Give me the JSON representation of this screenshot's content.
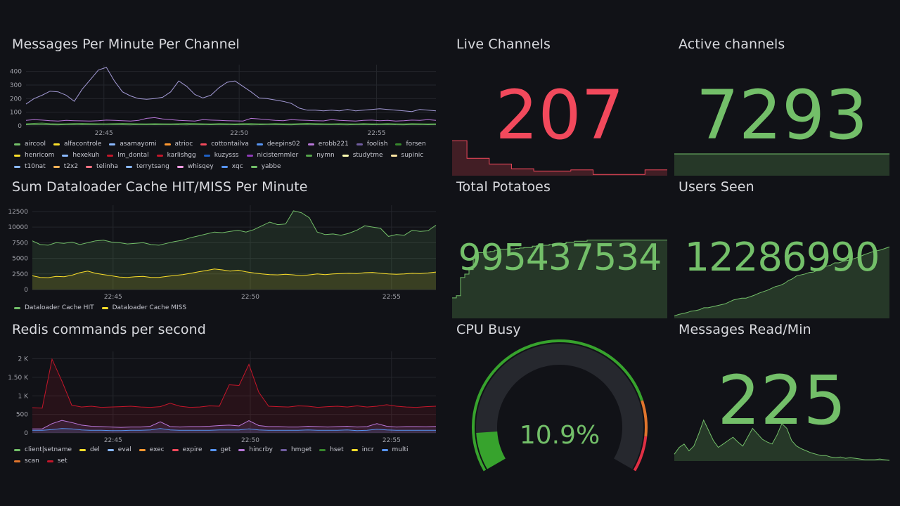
{
  "panels": {
    "messages": {
      "title": "Messages Per Minute Per Channel",
      "legend": [
        {
          "name": "aircool",
          "color": "#73bf69"
        },
        {
          "name": "alfacontrole",
          "color": "#fade2a"
        },
        {
          "name": "asamayomi",
          "color": "#8ab8ff"
        },
        {
          "name": "atrioc",
          "color": "#ff9830"
        },
        {
          "name": "cottontailva",
          "color": "#f2495c"
        },
        {
          "name": "deepins02",
          "color": "#5794f2"
        },
        {
          "name": "erobb221",
          "color": "#b877d9"
        },
        {
          "name": "foolish",
          "color": "#705da0"
        },
        {
          "name": "forsen",
          "color": "#37872d"
        },
        {
          "name": "henricom",
          "color": "#fade2a"
        },
        {
          "name": "hexekuh",
          "color": "#8ab8ff"
        },
        {
          "name": "lm_dontal",
          "color": "#c4162a"
        },
        {
          "name": "karlishgg",
          "color": "#c4162a"
        },
        {
          "name": "kuzysss",
          "color": "#1f60c4"
        },
        {
          "name": "nicistemmler",
          "color": "#8f3bb8"
        },
        {
          "name": "nymn",
          "color": "#56a64b"
        },
        {
          "name": "studytme",
          "color": "#ffffb3"
        },
        {
          "name": "supinic",
          "color": "#ffe6a3"
        },
        {
          "name": "t10nat",
          "color": "#8ab8ff"
        },
        {
          "name": "t2x2",
          "color": "#ffb357"
        },
        {
          "name": "telinha",
          "color": "#ff7383"
        },
        {
          "name": "terrytsang",
          "color": "#8ab8ff"
        },
        {
          "name": "whisqey",
          "color": "#ff9de5"
        },
        {
          "name": "xqc",
          "color": "#5794f2"
        },
        {
          "name": "yabbe",
          "color": "#73bf69"
        }
      ]
    },
    "dataloader": {
      "title": "Sum Dataloader Cache HIT/MISS Per Minute",
      "legend": [
        {
          "name": "Dataloader Cache HIT",
          "color": "#73bf69"
        },
        {
          "name": "Dataloader Cache MISS",
          "color": "#fade2a"
        }
      ]
    },
    "redis": {
      "title": "Redis commands per second",
      "legend": [
        {
          "name": "client|setname",
          "color": "#73bf69"
        },
        {
          "name": "del",
          "color": "#fade2a"
        },
        {
          "name": "eval",
          "color": "#8ab8ff"
        },
        {
          "name": "exec",
          "color": "#ff9830"
        },
        {
          "name": "expire",
          "color": "#f2495c"
        },
        {
          "name": "get",
          "color": "#5794f2"
        },
        {
          "name": "hincrby",
          "color": "#b877d9"
        },
        {
          "name": "hmget",
          "color": "#705da0"
        },
        {
          "name": "hset",
          "color": "#37872d"
        },
        {
          "name": "incr",
          "color": "#fade2a"
        },
        {
          "name": "multi",
          "color": "#5794f2"
        },
        {
          "name": "scan",
          "color": "#e0752d"
        },
        {
          "name": "set",
          "color": "#c4162a"
        }
      ]
    },
    "live_channels": {
      "title": "Live Channels",
      "value": "207",
      "color": "#f2495c"
    },
    "active_channels": {
      "title": "Active channels",
      "value": "7293",
      "color": "#73bf69"
    },
    "total_potatoes": {
      "title": "Total Potatoes",
      "value": "995437534",
      "color": "#73bf69"
    },
    "users_seen": {
      "title": "Users Seen",
      "value": "12286990",
      "color": "#73bf69"
    },
    "cpu_busy": {
      "title": "CPU Busy",
      "value_text": "10.9%",
      "value": 10.9,
      "color": "#73bf69"
    },
    "messages_read": {
      "title": "Messages Read/Min",
      "value": "225",
      "color": "#73bf69"
    }
  },
  "chart_data": [
    {
      "type": "line",
      "title": "Messages Per Minute Per Channel",
      "x_ticks": [
        "22:45",
        "22:50",
        "22:55"
      ],
      "y_ticks": [
        "400",
        "300",
        "200",
        "100",
        "0"
      ],
      "ylim": [
        0,
        450
      ],
      "series": [
        {
          "name": "foolish",
          "color": "#a39ad6",
          "values": [
            160,
            200,
            225,
            255,
            250,
            225,
            180,
            270,
            340,
            410,
            430,
            330,
            250,
            220,
            200,
            195,
            200,
            210,
            250,
            330,
            290,
            230,
            205,
            225,
            280,
            320,
            330,
            290,
            250,
            205,
            200,
            190,
            180,
            165,
            130,
            115,
            115,
            110,
            115,
            110,
            120,
            110,
            115,
            120,
            125,
            120,
            115,
            110,
            105,
            120,
            115,
            110
          ]
        },
        {
          "name": "erobb221",
          "color": "#b877d9",
          "values": [
            40,
            45,
            42,
            38,
            35,
            40,
            38,
            36,
            35,
            38,
            42,
            40,
            38,
            35,
            40,
            55,
            60,
            50,
            45,
            40,
            38,
            35,
            45,
            42,
            40,
            38,
            36,
            35,
            55,
            50,
            45,
            40,
            38,
            45,
            42,
            40,
            38,
            36,
            45,
            40,
            38,
            35,
            40,
            42,
            38,
            40,
            35,
            38,
            42,
            40,
            45,
            40
          ]
        },
        {
          "name": "nymn",
          "color": "#56a64b",
          "values": [
            15,
            18,
            20,
            16,
            14,
            15,
            17,
            18,
            16,
            15,
            14,
            16,
            18,
            17,
            15,
            14,
            16,
            15,
            14,
            16,
            18,
            17,
            15,
            14,
            16,
            15,
            14,
            16,
            17,
            15,
            14,
            16,
            15,
            14,
            16,
            18,
            17,
            15,
            14,
            16,
            15,
            14,
            16,
            15,
            14,
            16,
            15,
            14,
            16,
            15,
            14,
            15
          ]
        },
        {
          "name": "aircool",
          "color": "#73bf69",
          "values": [
            8,
            10,
            9,
            8,
            7,
            9,
            10,
            8,
            9,
            10,
            11,
            9,
            8,
            7,
            9,
            10,
            8,
            9,
            10,
            8,
            7,
            9,
            10,
            8,
            9,
            10,
            8,
            9,
            7,
            8,
            10,
            9,
            8,
            7,
            9,
            10,
            8,
            9,
            10,
            8,
            7,
            9,
            10,
            8,
            9,
            10,
            8,
            7,
            9,
            10,
            8,
            9
          ]
        }
      ]
    },
    {
      "type": "area",
      "title": "Sum Dataloader Cache HIT/MISS Per Minute",
      "x_ticks": [
        "22:45",
        "22:50",
        "22:55"
      ],
      "y_ticks": [
        "12500",
        "10000",
        "7500",
        "5000",
        "2500",
        "0"
      ],
      "ylim": [
        0,
        13500
      ],
      "series": [
        {
          "name": "Dataloader Cache HIT",
          "color": "#73bf69",
          "values": [
            7800,
            7200,
            7100,
            7500,
            7400,
            7600,
            7200,
            7500,
            7800,
            7900,
            7600,
            7500,
            7300,
            7400,
            7500,
            7200,
            7100,
            7400,
            7700,
            7900,
            8300,
            8600,
            8900,
            9200,
            9100,
            9300,
            9500,
            9200,
            9600,
            10200,
            10800,
            10400,
            10500,
            12600,
            12300,
            11500,
            9200,
            8800,
            8900,
            8700,
            9000,
            9500,
            10200,
            10000,
            9800,
            8500,
            8800,
            8700,
            9500,
            9300,
            9400,
            10300
          ]
        },
        {
          "name": "Dataloader Cache MISS",
          "color": "#fade2a",
          "values": [
            2200,
            1950,
            1900,
            2100,
            2050,
            2300,
            2700,
            2950,
            2600,
            2400,
            2200,
            2000,
            1950,
            2050,
            2100,
            1950,
            1950,
            2100,
            2250,
            2400,
            2600,
            2850,
            3050,
            3300,
            3150,
            2950,
            3100,
            2850,
            2650,
            2500,
            2400,
            2350,
            2450,
            2350,
            2200,
            2350,
            2500,
            2400,
            2500,
            2550,
            2600,
            2550,
            2700,
            2750,
            2600,
            2500,
            2450,
            2500,
            2600,
            2550,
            2650,
            2800
          ]
        }
      ]
    },
    {
      "type": "area",
      "title": "Redis commands per second",
      "x_ticks": [
        "22:45",
        "22:50",
        "22:55"
      ],
      "y_ticks": [
        "2 K",
        "1.50 K",
        "1 K",
        "500",
        "0"
      ],
      "ylim": [
        0,
        2200
      ],
      "series": [
        {
          "name": "set",
          "color": "#c4162a",
          "values": [
            680,
            670,
            1990,
            1400,
            750,
            700,
            720,
            690,
            700,
            710,
            720,
            700,
            690,
            710,
            800,
            720,
            690,
            700,
            730,
            720,
            1300,
            1280,
            1850,
            1100,
            720,
            710,
            700,
            730,
            720,
            690,
            710,
            720,
            700,
            730,
            700,
            720,
            760,
            720,
            700,
            690,
            710,
            720
          ]
        },
        {
          "name": "hincrby",
          "color": "#b877d9",
          "values": [
            110,
            110,
            250,
            340,
            280,
            210,
            180,
            170,
            160,
            150,
            160,
            160,
            180,
            300,
            170,
            160,
            170,
            170,
            180,
            200,
            210,
            190,
            330,
            200,
            170,
            170,
            160,
            160,
            180,
            170,
            160,
            170,
            180,
            160,
            170,
            250,
            180,
            160,
            170,
            170,
            165,
            175
          ]
        },
        {
          "name": "get",
          "color": "#5794f2",
          "values": [
            70,
            70,
            90,
            120,
            110,
            80,
            70,
            70,
            60,
            60,
            70,
            70,
            80,
            120,
            80,
            70,
            70,
            70,
            70,
            80,
            80,
            80,
            110,
            80,
            70,
            70,
            70,
            70,
            80,
            70,
            70,
            70,
            80,
            60,
            70,
            100,
            80,
            70,
            70,
            70,
            70,
            70
          ]
        }
      ]
    },
    {
      "type": "area",
      "title": "Live Channels",
      "values": [
        230,
        230,
        215,
        215,
        215,
        210,
        210,
        210,
        206,
        206,
        206,
        204,
        204,
        204,
        204,
        204,
        205,
        205,
        205,
        201,
        201,
        201,
        201,
        201,
        201,
        201,
        205,
        205,
        205,
        205
      ]
    },
    {
      "type": "area",
      "title": "Active channels",
      "values": [
        7293,
        7293,
        7293,
        7293,
        7293,
        7293,
        7293,
        7293,
        7293,
        7293
      ]
    },
    {
      "type": "area",
      "title": "Total Potatoes",
      "values": [
        90,
        100,
        180,
        195,
        215,
        265,
        290,
        290,
        292,
        295,
        300,
        305,
        305,
        306,
        306,
        308,
        310,
        312,
        312,
        318,
        320,
        322,
        322,
        326,
        326,
        330,
        330,
        336,
        336,
        340,
        340,
        340,
        345,
        345,
        345,
        345,
        345,
        345,
        345,
        345,
        345,
        345,
        345,
        345,
        345,
        345,
        345,
        345,
        345,
        345,
        345,
        345
      ]
    },
    {
      "type": "area",
      "title": "Users Seen",
      "values": [
        5,
        8,
        10,
        12,
        15,
        16,
        18,
        22,
        22,
        24,
        26,
        28,
        30,
        34,
        38,
        40,
        42,
        42,
        45,
        48,
        52,
        55,
        58,
        62,
        66,
        68,
        72,
        78,
        82,
        88,
        90,
        92,
        95,
        96,
        100,
        105,
        108,
        110,
        115,
        115,
        118,
        120,
        122,
        125,
        128,
        132,
        135,
        138,
        140,
        142,
        145,
        148
      ]
    },
    {
      "type": "area",
      "title": "Messages Read/Min",
      "values": [
        10,
        20,
        25,
        15,
        22,
        40,
        60,
        45,
        30,
        20,
        25,
        30,
        35,
        28,
        22,
        35,
        48,
        40,
        32,
        28,
        25,
        38,
        55,
        48,
        30,
        22,
        18,
        15,
        12,
        10,
        8,
        8,
        6,
        5,
        6,
        4,
        5,
        4,
        3,
        2,
        2,
        2,
        3,
        2,
        1
      ]
    }
  ]
}
